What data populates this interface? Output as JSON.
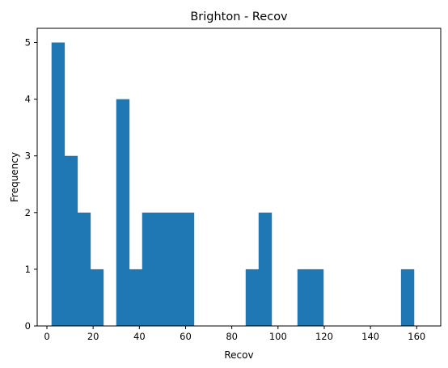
{
  "chart_data": {
    "type": "bar",
    "title": "Brighton - Recov",
    "xlabel": "Recov",
    "ylabel": "Frequency",
    "bin_edges": [
      2,
      7.6,
      13.2,
      18.8,
      24.4,
      30,
      35.6,
      41.2,
      46.8,
      52.4,
      58,
      63.6,
      69.2,
      74.8,
      80.4,
      86,
      91.6,
      97.2,
      102.8,
      108.4,
      114,
      119.6,
      125.2,
      130.8,
      136.4,
      142,
      147.6,
      153.2,
      158.8,
      164.4
    ],
    "counts": [
      5,
      3,
      2,
      1,
      0,
      4,
      1,
      2,
      2,
      2,
      2,
      0,
      0,
      0,
      0,
      1,
      2,
      0,
      0,
      1,
      1,
      0,
      0,
      0,
      0,
      0,
      0,
      1,
      0
    ],
    "xlim": [
      -4.2,
      170.4
    ],
    "ylim": [
      0,
      5.25
    ],
    "xticks": [
      0,
      20,
      40,
      60,
      80,
      100,
      120,
      140,
      160
    ],
    "yticks": [
      0,
      1,
      2,
      3,
      4,
      5
    ],
    "bar_color": "#1f77b4",
    "grid": false,
    "legend": "none"
  }
}
